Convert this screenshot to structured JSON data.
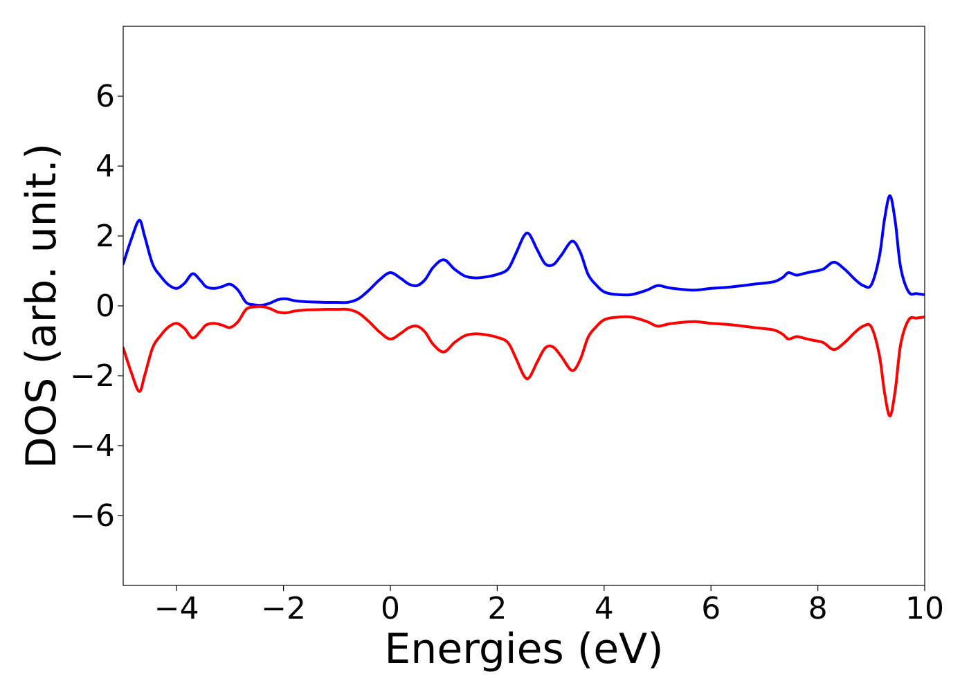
{
  "chart_data": {
    "type": "line",
    "title": "",
    "xlabel": "Energies (eV)",
    "ylabel": "DOS (arb. unit.)",
    "xlim": [
      -5,
      10
    ],
    "ylim": [
      -8,
      8
    ],
    "grid": false,
    "legend": "none",
    "x_ticks": [
      {
        "value": -4,
        "label": "−4"
      },
      {
        "value": -2,
        "label": "−2"
      },
      {
        "value": 0,
        "label": "0"
      },
      {
        "value": 2,
        "label": "2"
      },
      {
        "value": 4,
        "label": "4"
      },
      {
        "value": 6,
        "label": "6"
      },
      {
        "value": 8,
        "label": "8"
      },
      {
        "value": 10,
        "label": "10"
      }
    ],
    "y_ticks": [
      {
        "value": -6,
        "label": "−6"
      },
      {
        "value": -4,
        "label": "−4"
      },
      {
        "value": -2,
        "label": "−2"
      },
      {
        "value": 0,
        "label": "0"
      },
      {
        "value": 2,
        "label": "2"
      },
      {
        "value": 4,
        "label": "4"
      },
      {
        "value": 6,
        "label": "6"
      }
    ],
    "series": [
      {
        "color": "#0000ff",
        "x": [
          -5.0,
          -4.85,
          -4.7,
          -4.6,
          -4.45,
          -4.3,
          -4.15,
          -4.0,
          -3.85,
          -3.7,
          -3.55,
          -3.45,
          -3.3,
          -3.15,
          -3.0,
          -2.85,
          -2.7,
          -2.55,
          -2.4,
          -2.25,
          -2.1,
          -1.95,
          -1.8,
          -1.6,
          -1.4,
          -1.2,
          -1.0,
          -0.8,
          -0.6,
          -0.4,
          -0.2,
          0.0,
          0.2,
          0.35,
          0.5,
          0.65,
          0.8,
          1.0,
          1.2,
          1.4,
          1.6,
          1.8,
          2.0,
          2.2,
          2.35,
          2.5,
          2.6,
          2.75,
          2.9,
          3.05,
          3.2,
          3.4,
          3.55,
          3.7,
          3.85,
          4.0,
          4.2,
          4.5,
          4.8,
          5.0,
          5.2,
          5.4,
          5.7,
          6.0,
          6.3,
          6.6,
          6.8,
          7.0,
          7.2,
          7.35,
          7.45,
          7.6,
          7.75,
          7.9,
          8.1,
          8.3,
          8.5,
          8.7,
          8.85,
          9.0,
          9.15,
          9.25,
          9.35,
          9.45,
          9.55,
          9.7,
          9.85,
          10.0
        ],
        "values": [
          1.2,
          1.9,
          2.45,
          2.0,
          1.2,
          0.85,
          0.6,
          0.5,
          0.65,
          0.92,
          0.72,
          0.55,
          0.5,
          0.55,
          0.62,
          0.45,
          0.1,
          0.03,
          0.02,
          0.08,
          0.18,
          0.2,
          0.15,
          0.12,
          0.11,
          0.1,
          0.1,
          0.1,
          0.2,
          0.45,
          0.75,
          0.95,
          0.78,
          0.62,
          0.58,
          0.75,
          1.1,
          1.32,
          1.05,
          0.85,
          0.8,
          0.83,
          0.9,
          1.05,
          1.5,
          2.0,
          2.05,
          1.6,
          1.2,
          1.18,
          1.45,
          1.85,
          1.55,
          0.9,
          0.6,
          0.4,
          0.33,
          0.32,
          0.45,
          0.58,
          0.52,
          0.48,
          0.45,
          0.5,
          0.53,
          0.58,
          0.62,
          0.65,
          0.7,
          0.82,
          0.95,
          0.88,
          0.93,
          0.98,
          1.05,
          1.25,
          1.05,
          0.75,
          0.58,
          0.6,
          1.4,
          2.5,
          3.15,
          2.4,
          1.1,
          0.4,
          0.35,
          0.32
        ]
      },
      {
        "color": "#ff0000",
        "x": [
          -5.0,
          -4.85,
          -4.7,
          -4.6,
          -4.45,
          -4.3,
          -4.15,
          -4.0,
          -3.85,
          -3.7,
          -3.55,
          -3.45,
          -3.3,
          -3.15,
          -3.0,
          -2.85,
          -2.7,
          -2.55,
          -2.4,
          -2.25,
          -2.1,
          -1.95,
          -1.8,
          -1.6,
          -1.4,
          -1.2,
          -1.0,
          -0.8,
          -0.6,
          -0.4,
          -0.2,
          0.0,
          0.2,
          0.35,
          0.5,
          0.65,
          0.8,
          1.0,
          1.2,
          1.4,
          1.6,
          1.8,
          2.0,
          2.2,
          2.35,
          2.5,
          2.6,
          2.75,
          2.9,
          3.05,
          3.2,
          3.4,
          3.55,
          3.7,
          3.85,
          4.0,
          4.2,
          4.5,
          4.8,
          5.0,
          5.2,
          5.4,
          5.7,
          6.0,
          6.3,
          6.6,
          6.8,
          7.0,
          7.2,
          7.35,
          7.45,
          7.6,
          7.75,
          7.9,
          8.1,
          8.3,
          8.5,
          8.7,
          8.85,
          9.0,
          9.15,
          9.25,
          9.35,
          9.45,
          9.55,
          9.7,
          9.85,
          10.0
        ],
        "values": [
          -1.2,
          -1.9,
          -2.45,
          -2.0,
          -1.2,
          -0.85,
          -0.6,
          -0.5,
          -0.65,
          -0.92,
          -0.72,
          -0.55,
          -0.5,
          -0.55,
          -0.62,
          -0.45,
          -0.1,
          -0.03,
          -0.02,
          -0.08,
          -0.18,
          -0.2,
          -0.15,
          -0.12,
          -0.11,
          -0.1,
          -0.1,
          -0.1,
          -0.2,
          -0.45,
          -0.75,
          -0.95,
          -0.78,
          -0.62,
          -0.58,
          -0.75,
          -1.1,
          -1.32,
          -1.05,
          -0.85,
          -0.8,
          -0.83,
          -0.9,
          -1.05,
          -1.5,
          -2.0,
          -2.05,
          -1.6,
          -1.2,
          -1.18,
          -1.45,
          -1.85,
          -1.55,
          -0.9,
          -0.6,
          -0.4,
          -0.33,
          -0.32,
          -0.45,
          -0.58,
          -0.52,
          -0.48,
          -0.45,
          -0.5,
          -0.53,
          -0.58,
          -0.62,
          -0.65,
          -0.7,
          -0.82,
          -0.95,
          -0.88,
          -0.93,
          -0.98,
          -1.05,
          -1.25,
          -1.05,
          -0.75,
          -0.58,
          -0.6,
          -1.4,
          -2.5,
          -3.15,
          -2.4,
          -1.1,
          -0.4,
          -0.35,
          -0.32
        ]
      }
    ]
  }
}
